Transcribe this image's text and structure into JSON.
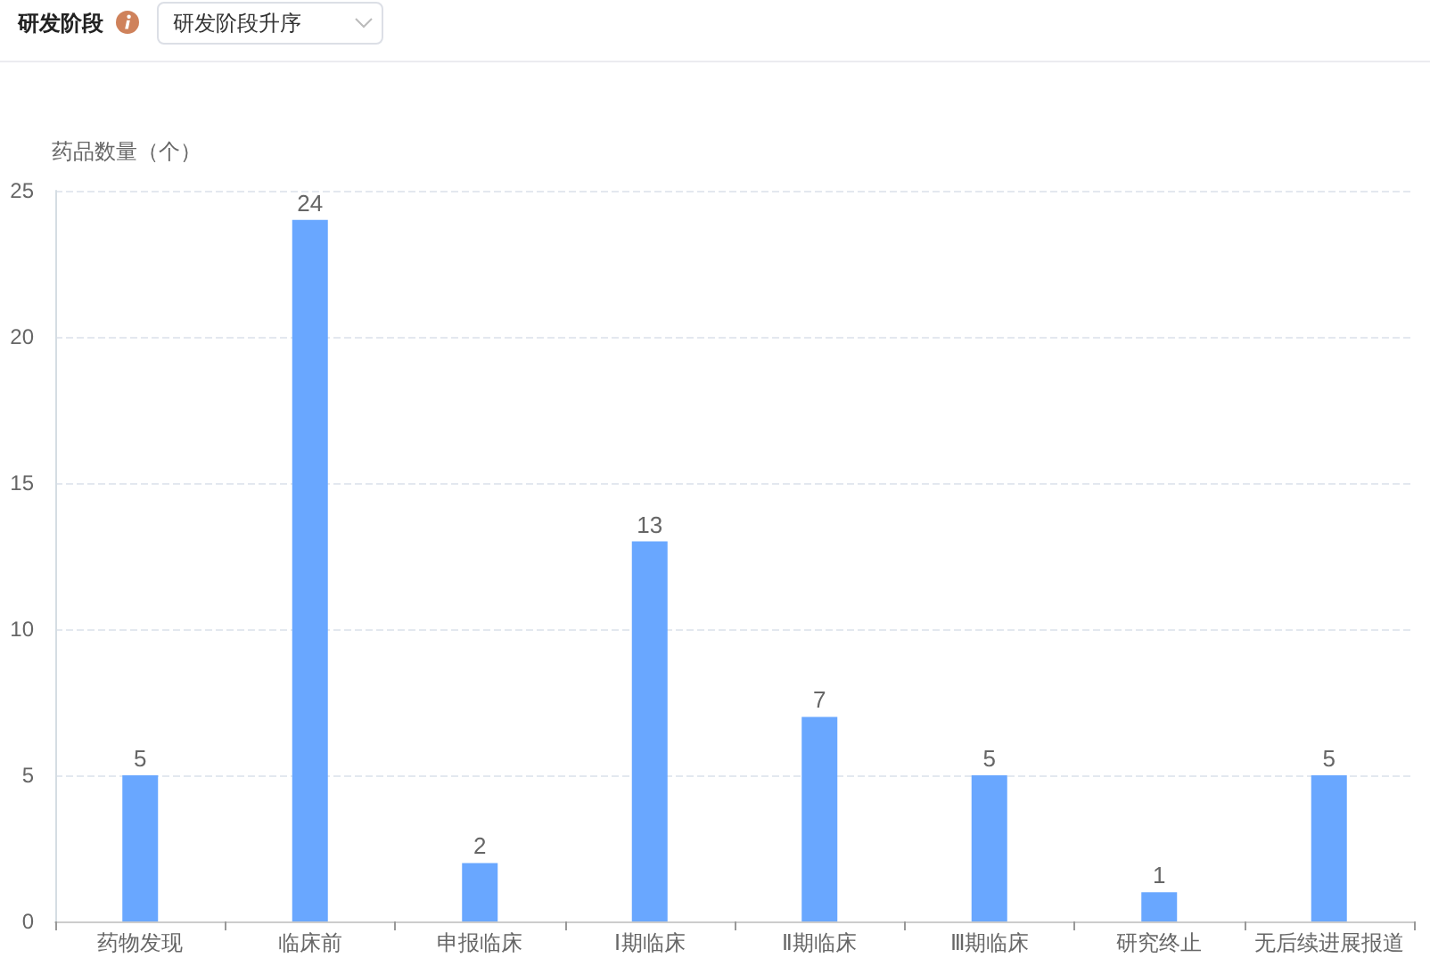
{
  "chart_data": {
    "type": "bar",
    "title": "研发阶段",
    "annotations": [
      "研发阶段升序"
    ],
    "ylabel": "药品数量（个）",
    "categories": [
      "药物发现",
      "临床前",
      "申报临床",
      "Ⅰ期临床",
      "Ⅱ期临床",
      "Ⅲ期临床",
      "研究终止",
      "无后续进展报道"
    ],
    "values": [
      5,
      24,
      2,
      13,
      7,
      5,
      1,
      5
    ],
    "color": "#69a7ff",
    "ylim": [
      0,
      25
    ],
    "yticks": [
      0,
      5,
      10,
      15,
      20,
      25
    ],
    "grid": "y",
    "data_labels": true
  }
}
